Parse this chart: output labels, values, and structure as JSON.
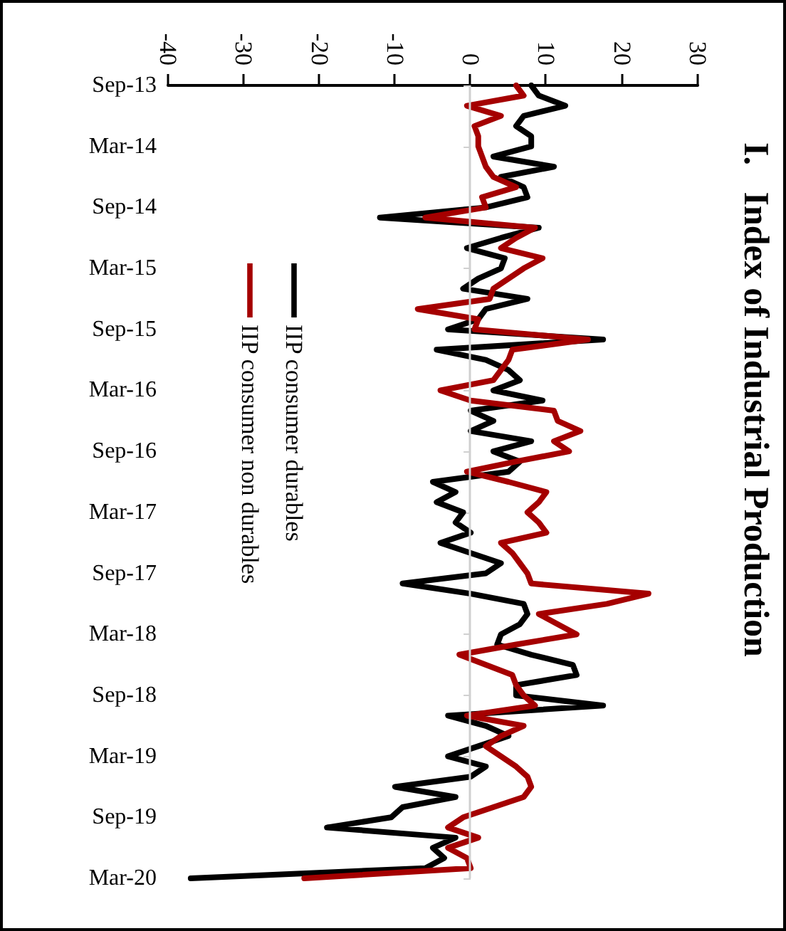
{
  "chart_data": {
    "type": "line",
    "title": "I.   Index of Industrial Production",
    "categories": [
      "Sep-13",
      null,
      null,
      null,
      null,
      null,
      "Mar-14",
      null,
      null,
      null,
      null,
      null,
      "Sep-14",
      null,
      null,
      null,
      null,
      null,
      "Mar-15",
      null,
      null,
      null,
      null,
      null,
      "Sep-15",
      null,
      null,
      null,
      null,
      null,
      "Mar-16",
      null,
      null,
      null,
      null,
      null,
      "Sep-16",
      null,
      null,
      null,
      null,
      null,
      "Mar-17",
      null,
      null,
      null,
      null,
      null,
      "Sep-17",
      null,
      null,
      null,
      null,
      null,
      "Mar-18",
      null,
      null,
      null,
      null,
      null,
      "Sep-18",
      null,
      null,
      null,
      null,
      null,
      "Mar-19",
      null,
      null,
      null,
      null,
      null,
      "Sep-19",
      null,
      null,
      null,
      null,
      null,
      "Mar-20"
    ],
    "series": [
      {
        "name": "IIP consumer durables",
        "color": "#000000",
        "values": [
          8,
          9,
          12.5,
          7,
          6,
          8,
          8,
          3,
          11,
          4,
          7,
          7.5,
          2,
          -12,
          9,
          4,
          -0.5,
          4.5,
          4,
          1,
          -1,
          7.5,
          2,
          1,
          -3,
          17.5,
          -4.5,
          2,
          5,
          6.5,
          3,
          9.5,
          0,
          3,
          0,
          8,
          3,
          6.5,
          5,
          -5,
          -2,
          -4.5,
          -1,
          -2,
          0,
          -4,
          0,
          4,
          2,
          -9,
          0,
          7,
          7.5,
          6.5,
          4,
          3.5,
          8,
          13.5,
          14,
          6,
          6,
          17.5,
          -3,
          2,
          5,
          1,
          -3,
          2,
          0,
          -10,
          -2,
          -9,
          -10.5,
          -19,
          -2,
          -5,
          -3.5,
          -6,
          -37
        ]
      },
      {
        "name": "IIP consumer non durables",
        "color": "#a50000",
        "values": [
          6,
          7,
          -0.5,
          4,
          0.5,
          1,
          1,
          1.5,
          2,
          3,
          6,
          1.5,
          2,
          -6,
          8.5,
          6,
          4,
          9.5,
          7,
          5,
          3,
          2.5,
          -7,
          1,
          0.5,
          15.5,
          5.5,
          5,
          4,
          3,
          -4,
          0,
          11,
          11.5,
          14.5,
          11,
          13,
          6,
          -0.5,
          5,
          10,
          9,
          7.5,
          9,
          10,
          4,
          5.5,
          6.5,
          7.5,
          8,
          23.5,
          18,
          9,
          11.5,
          14,
          6,
          -1.5,
          2,
          5.5,
          6,
          7,
          8.5,
          -0.5,
          7,
          4,
          2,
          4,
          6,
          7.5,
          8,
          7,
          3,
          -1,
          -3,
          1,
          -3,
          -0.5,
          0,
          -22
        ]
      }
    ],
    "orientation": "horizontal",
    "xlim": [
      -40,
      30
    ],
    "xticks": [
      -40,
      -30,
      -20,
      -10,
      0,
      10,
      20,
      30
    ],
    "ref_lines": [
      {
        "axis": "x",
        "value": 0,
        "color": "#d0d0d0",
        "line_style": "solid"
      }
    ],
    "grid": false,
    "legend": "left",
    "line_style": "solid"
  }
}
